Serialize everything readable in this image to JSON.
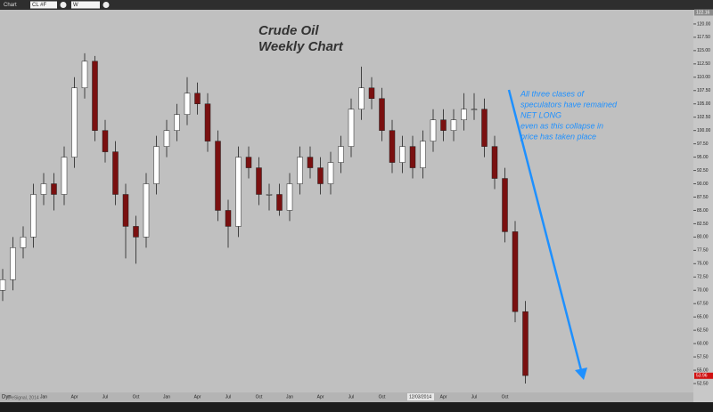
{
  "toolbar": {
    "window": "Chart",
    "symbol": "CL #F",
    "interval": "W"
  },
  "footer": {
    "mode": "Dyn",
    "credit": "© eSignal, 2014"
  },
  "chart_data": {
    "type": "candlestick",
    "title": "Crude Oil",
    "subtitle": "Weekly Chart",
    "annotation": [
      "All three clases of",
      "speculators have remained",
      "NET LONG",
      "even as this collapse in",
      "price has taken place"
    ],
    "crosshair_date": "12/03/2014",
    "categories": [
      null,
      null,
      null,
      null,
      "Jan",
      null,
      null,
      "Apr",
      null,
      null,
      "Jul",
      null,
      null,
      "Oct",
      null,
      null,
      "Jan",
      null,
      null,
      "Apr",
      null,
      null,
      "Jul",
      null,
      null,
      "Oct",
      null,
      null,
      "Jan",
      null,
      null,
      "Apr",
      null,
      null,
      "Jul",
      null,
      null,
      "Oct",
      null,
      null,
      "Jan",
      null,
      null,
      "Apr",
      null,
      null,
      "Jul",
      null,
      null,
      "Oct",
      null,
      null
    ],
    "open": [
      70,
      72,
      78,
      80,
      88,
      90,
      88,
      95,
      108,
      113,
      100,
      96,
      88,
      82,
      80,
      90,
      97,
      100,
      103,
      107,
      105,
      98,
      85,
      82,
      95,
      93,
      88,
      88,
      85,
      90,
      95,
      93,
      90,
      94,
      97,
      104,
      108,
      106,
      100,
      94,
      97,
      93,
      98,
      102,
      100,
      102,
      104,
      104,
      97,
      91,
      81,
      66
    ],
    "high": [
      74,
      80,
      82,
      90,
      92,
      92,
      97,
      110,
      114.5,
      114,
      102,
      98,
      90,
      84,
      92,
      99,
      102,
      105,
      110,
      109,
      107,
      100,
      87,
      97,
      97,
      95,
      90,
      90,
      92,
      97,
      97,
      95,
      96,
      99,
      106,
      112,
      110,
      108,
      102,
      99,
      99,
      100,
      104,
      104,
      104,
      107,
      107,
      106,
      99,
      93,
      83,
      68
    ],
    "low": [
      68,
      70,
      76,
      78,
      86,
      85,
      86,
      93,
      106,
      98,
      94,
      86,
      76,
      75,
      78,
      88,
      95,
      98,
      101,
      103,
      96,
      83,
      78,
      80,
      91,
      86,
      85,
      84,
      83,
      88,
      91,
      88,
      88,
      92,
      95,
      102,
      104,
      98,
      92,
      92,
      91,
      91,
      96,
      98,
      98,
      100,
      102,
      95,
      89,
      79,
      64,
      52.5
    ],
    "close": [
      72,
      78,
      80,
      88,
      90,
      88,
      95,
      108,
      113,
      100,
      96,
      88,
      82,
      80,
      90,
      97,
      100,
      103,
      107,
      105,
      98,
      85,
      82,
      95,
      93,
      88,
      88,
      85,
      90,
      95,
      93,
      90,
      94,
      97,
      104,
      108,
      106,
      100,
      94,
      97,
      93,
      98,
      102,
      100,
      102,
      104,
      104,
      97,
      91,
      81,
      66,
      54
    ],
    "up_color": "#ffffff",
    "down_color": "#7a1010",
    "ylim": [
      51,
      122.16
    ],
    "yticks": [
      {
        "value": 52.5,
        "label": "52.50"
      },
      {
        "value": 55,
        "label": "55.00"
      },
      {
        "value": 57.5,
        "label": "57.50"
      },
      {
        "value": 60,
        "label": "60.00"
      },
      {
        "value": 62.5,
        "label": "62.50"
      },
      {
        "value": 65,
        "label": "65.00"
      },
      {
        "value": 67.5,
        "label": "67.50"
      },
      {
        "value": 70,
        "label": "70.00"
      },
      {
        "value": 72.5,
        "label": "72.50"
      },
      {
        "value": 75,
        "label": "75.00"
      },
      {
        "value": 77.5,
        "label": "77.50"
      },
      {
        "value": 80,
        "label": "80.00"
      },
      {
        "value": 82.5,
        "label": "82.50"
      },
      {
        "value": 85,
        "label": "85.00"
      },
      {
        "value": 87.5,
        "label": "87.50"
      },
      {
        "value": 90,
        "label": "90.00"
      },
      {
        "value": 92.5,
        "label": "92.50"
      },
      {
        "value": 95,
        "label": "95.00"
      },
      {
        "value": 97.5,
        "label": "97.50"
      },
      {
        "value": 100,
        "label": "100.00"
      },
      {
        "value": 102.5,
        "label": "102.50"
      },
      {
        "value": 105,
        "label": "105.00"
      },
      {
        "value": 107.5,
        "label": "107.50"
      },
      {
        "value": 110,
        "label": "110.00"
      },
      {
        "value": 112.5,
        "label": "112.50"
      },
      {
        "value": 115,
        "label": "115.00"
      },
      {
        "value": 117.5,
        "label": "117.50"
      },
      {
        "value": 120,
        "label": "120.00"
      }
    ],
    "price_markers": [
      {
        "value": 122.16,
        "label": "122.16",
        "color": "#8a8a8a"
      },
      {
        "value": 53.96,
        "label": "53.96",
        "color": "#d01010"
      }
    ],
    "arrow_color": "#1e90ff"
  }
}
